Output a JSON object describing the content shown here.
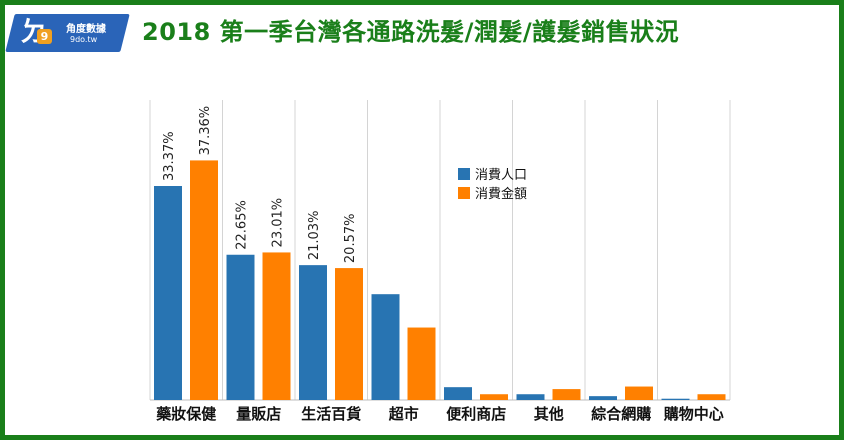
{
  "logo": {
    "mark": "9",
    "name_cn": "角度數據",
    "url": "9do.tw"
  },
  "chart_data": {
    "type": "bar",
    "title": "2018 第一季台灣各通路洗髮/潤髮/護髮銷售狀況",
    "categories": [
      "藥妝保健",
      "量販店",
      "生活百貨",
      "超市",
      "便利商店",
      "其他",
      "綜合網購",
      "購物中心"
    ],
    "series": [
      {
        "name": "消費人口",
        "color": "#2874b2",
        "values": [
          33.37,
          22.65,
          21.03,
          16.5,
          2.0,
          0.9,
          0.6,
          0.2
        ],
        "labels": [
          "33.37%",
          "22.65%",
          "21.03%",
          "",
          "",
          "",
          "",
          ""
        ]
      },
      {
        "name": "消費金額",
        "color": "#ff8000",
        "values": [
          37.36,
          23.01,
          20.57,
          11.3,
          0.9,
          1.7,
          2.1,
          0.9
        ],
        "labels": [
          "37.36%",
          "23.01%",
          "20.57%",
          "",
          "",
          "",
          "",
          ""
        ]
      }
    ],
    "ylim": [
      0,
      45
    ],
    "grid": "vertical",
    "legend": "top-center"
  }
}
